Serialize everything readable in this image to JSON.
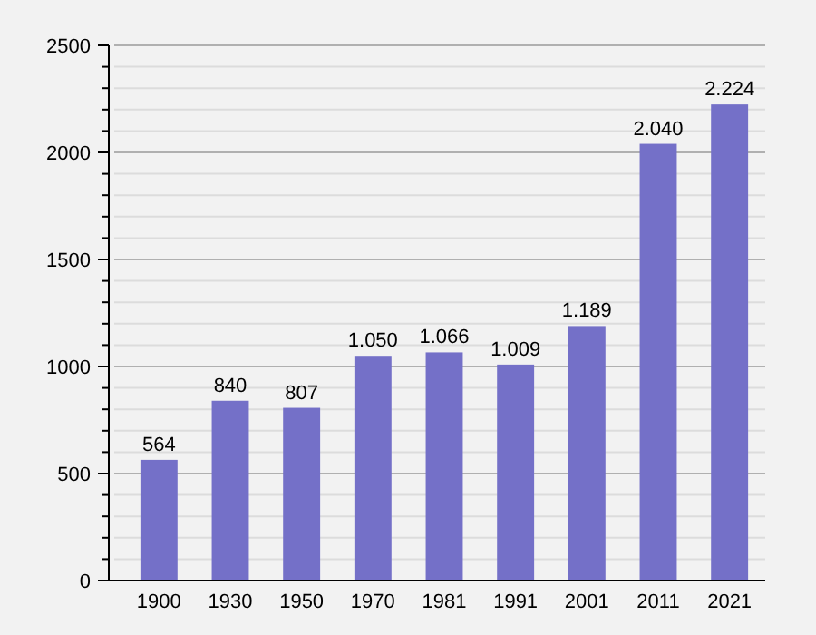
{
  "chart_data": {
    "type": "bar",
    "categories": [
      "1900",
      "1930",
      "1950",
      "1970",
      "1981",
      "1991",
      "2001",
      "2011",
      "2021"
    ],
    "values": [
      564,
      840,
      807,
      1050,
      1066,
      1009,
      1189,
      2040,
      2224
    ],
    "value_labels": [
      "564",
      "840",
      "807",
      "1.050",
      "1.066",
      "1.009",
      "1.189",
      "2.040",
      "2.224"
    ],
    "color": "#7470c8",
    "ylim": [
      0,
      2500
    ],
    "yticks": [
      0,
      {
        "value": 100,
        "label": null
      },
      {
        "value": 200,
        "label": null
      },
      {
        "value": 300,
        "label": null
      },
      {
        "value": 400,
        "label": null
      },
      500,
      {
        "value": 600,
        "label": null
      },
      {
        "value": 700,
        "label": null
      },
      {
        "value": 800,
        "label": null
      },
      {
        "value": 900,
        "label": null
      },
      1000,
      {
        "value": 1100,
        "label": null
      },
      {
        "value": 1200,
        "label": null
      },
      {
        "value": 1300,
        "label": null
      },
      {
        "value": 1400,
        "label": null
      },
      1500,
      {
        "value": 1600,
        "label": null
      },
      {
        "value": 1700,
        "label": null
      },
      {
        "value": 1800,
        "label": null
      },
      {
        "value": 1900,
        "label": null
      },
      2000,
      {
        "value": 2100,
        "label": null
      },
      {
        "value": 2200,
        "label": null
      },
      {
        "value": 2300,
        "label": null
      },
      {
        "value": 2400,
        "label": null
      },
      2500
    ],
    "grid": true
  }
}
